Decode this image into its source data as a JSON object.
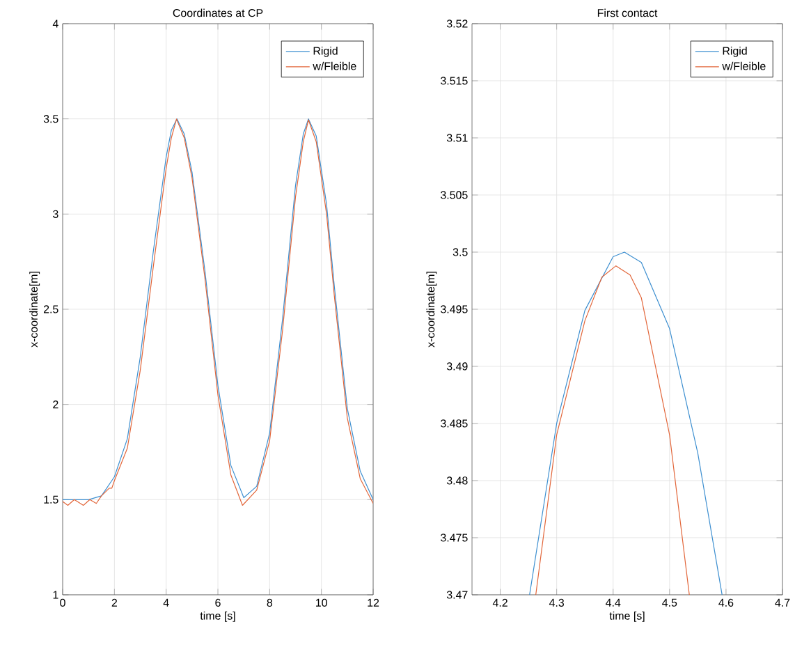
{
  "chart_data": [
    {
      "type": "line",
      "title": "Coordinates at CP",
      "xlabel": "time [s]",
      "ylabel": "x-coordinate[m]",
      "xlim": [
        0,
        12
      ],
      "ylim": [
        1,
        4
      ],
      "xticks": [
        0,
        2,
        4,
        6,
        8,
        10,
        12
      ],
      "yticks": [
        1,
        1.5,
        2,
        2.5,
        3,
        3.5,
        4
      ],
      "grid": true,
      "legend": "top right",
      "marker": "none",
      "line_style": "solid",
      "series": [
        {
          "name": "Rigid",
          "color": "#3d8fd0",
          "x": [
            0,
            1,
            1.5,
            2,
            2.5,
            3,
            3.5,
            4,
            4.2,
            4.42,
            4.7,
            5,
            5.5,
            6,
            6.5,
            7,
            7.5,
            8,
            8.5,
            9,
            9.3,
            9.5,
            9.8,
            10.2,
            10.5,
            11,
            11.5,
            12
          ],
          "values": [
            1.5,
            1.5,
            1.52,
            1.62,
            1.82,
            2.25,
            2.8,
            3.3,
            3.44,
            3.5,
            3.42,
            3.22,
            2.7,
            2.1,
            1.68,
            1.51,
            1.57,
            1.85,
            2.45,
            3.15,
            3.42,
            3.5,
            3.41,
            3.05,
            2.62,
            1.98,
            1.65,
            1.5
          ]
        },
        {
          "name": "w/Fleible",
          "color": "#e2663a",
          "x": [
            0,
            0.2,
            0.45,
            0.8,
            1.05,
            1.3,
            1.5,
            1.8,
            1.9,
            2,
            2.5,
            3,
            3.5,
            4,
            4.2,
            4.4,
            4.7,
            5,
            5.5,
            6,
            6.5,
            6.95,
            7.5,
            8,
            8.5,
            9,
            9.3,
            9.5,
            9.8,
            10.2,
            10.5,
            11,
            11.5,
            12
          ],
          "values": [
            1.49,
            1.47,
            1.5,
            1.47,
            1.5,
            1.48,
            1.52,
            1.56,
            1.56,
            1.6,
            1.77,
            2.18,
            2.72,
            3.24,
            3.4,
            3.499,
            3.4,
            3.19,
            2.66,
            2.05,
            1.63,
            1.47,
            1.55,
            1.81,
            2.39,
            3.09,
            3.38,
            3.495,
            3.38,
            3.0,
            2.57,
            1.93,
            1.61,
            1.48
          ]
        }
      ]
    },
    {
      "type": "line",
      "title": "First contact",
      "xlabel": "time [s]",
      "ylabel": "x-coordinate[m]",
      "xlim": [
        4.15,
        4.7
      ],
      "ylim": [
        3.47,
        3.52
      ],
      "xticks": [
        4.2,
        4.3,
        4.4,
        4.5,
        4.6,
        4.7
      ],
      "yticks": [
        3.47,
        3.475,
        3.48,
        3.485,
        3.49,
        3.495,
        3.5,
        3.505,
        3.51,
        3.515,
        3.52
      ],
      "grid": true,
      "legend": "top right",
      "marker": "none",
      "line_style": "solid",
      "series": [
        {
          "name": "Rigid",
          "color": "#3d8fd0",
          "x": [
            4.252,
            4.3,
            4.35,
            4.4,
            4.42,
            4.45,
            4.5,
            4.55,
            4.593
          ],
          "values": [
            3.47,
            3.485,
            3.4949,
            3.4996,
            3.5,
            3.4991,
            3.4933,
            3.4824,
            3.47
          ]
        },
        {
          "name": "w/Fleible",
          "color": "#e2663a",
          "x": [
            4.263,
            4.3,
            4.35,
            4.38,
            4.405,
            4.43,
            4.45,
            4.5,
            4.535
          ],
          "values": [
            3.47,
            3.484,
            3.494,
            3.4978,
            3.4988,
            3.498,
            3.496,
            3.484,
            3.47
          ]
        }
      ]
    }
  ]
}
